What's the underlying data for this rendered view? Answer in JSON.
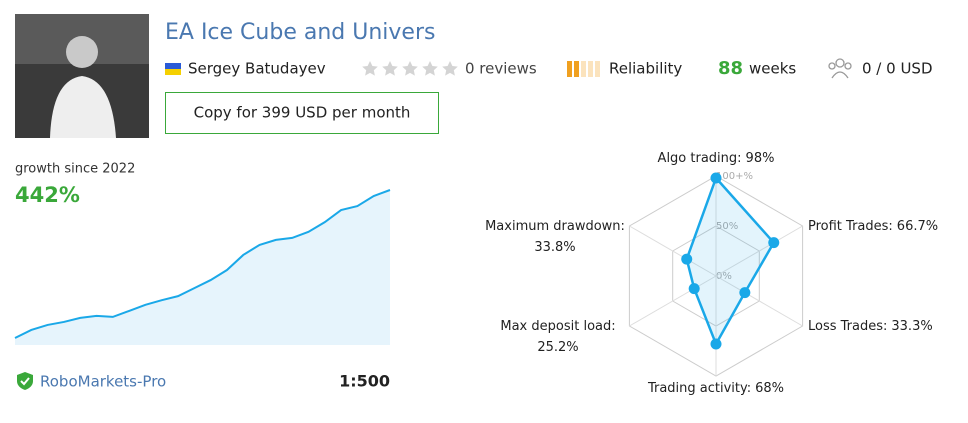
{
  "profile": {
    "title": "EA Ice Cube and Univers",
    "author": "Sergey Batudayev",
    "reviews": "0 reviews",
    "reliability": "Reliability",
    "weeks_value": "88",
    "weeks_unit": "weeks",
    "subscribers": "0 / 0 USD",
    "copy_button": "Copy for 399 USD per month",
    "broker": "RoboMarkets-Pro",
    "leverage": "1:500"
  },
  "chart_data": [
    {
      "type": "area",
      "title": "growth since 2022",
      "total_label": "442%",
      "color": "#1aa8e8",
      "values": [
        0,
        24,
        39,
        48,
        60,
        66,
        63,
        81,
        99,
        113,
        125,
        149,
        173,
        203,
        248,
        278,
        293,
        299,
        317,
        346,
        382,
        394,
        424,
        442
      ]
    },
    {
      "type": "radar",
      "color": "#1aa8e8",
      "categories": [
        "Algo trading:",
        "Profit Trades:",
        "Loss Trades:",
        "Trading activity:",
        "Max deposit load:",
        "Maximum drawdown:"
      ],
      "values": [
        98,
        66.7,
        33.3,
        68,
        25.2,
        33.8
      ],
      "value_labels": [
        "98%",
        "66.7%",
        "33.3%",
        "68%",
        "25.2%",
        "33.8%"
      ],
      "rlim": [
        0,
        100
      ],
      "rticks": [
        {
          "value": 0,
          "label": "0%"
        },
        {
          "value": 50,
          "label": "50%"
        },
        {
          "value": 100,
          "label": "100+%"
        }
      ]
    }
  ]
}
